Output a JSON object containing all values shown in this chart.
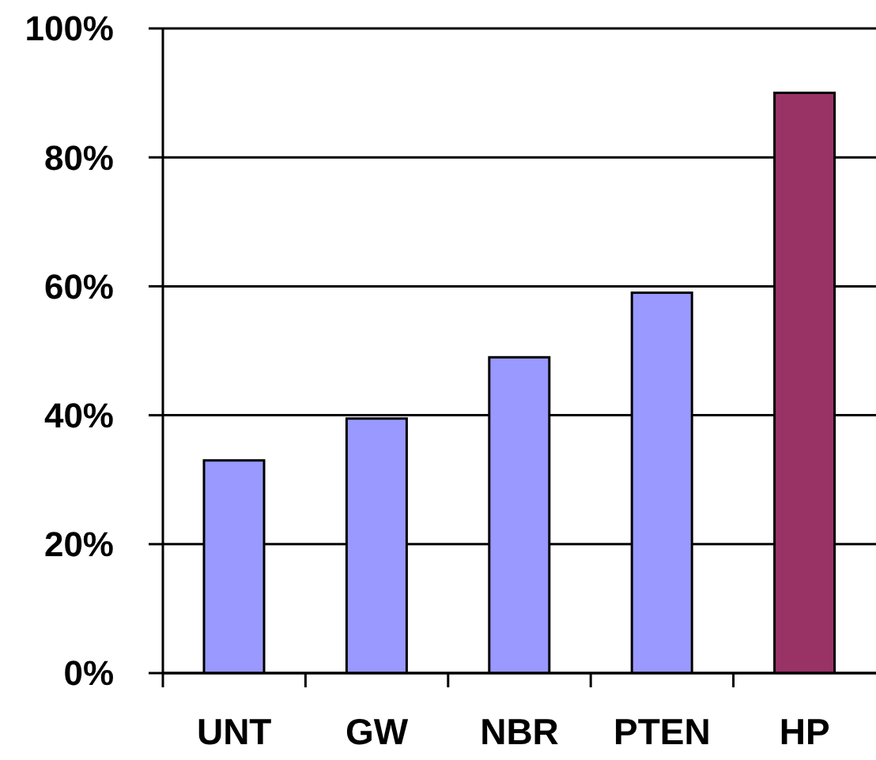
{
  "chart_data": {
    "type": "bar",
    "categories": [
      "UNT",
      "GW",
      "NBR",
      "PTEN",
      "HP"
    ],
    "values": [
      33,
      39.5,
      49,
      59,
      90
    ],
    "colors": [
      "#9999ff",
      "#9999ff",
      "#9999ff",
      "#9999ff",
      "#993366"
    ],
    "ylim": [
      0,
      100
    ],
    "yticks": [
      {
        "value": 0,
        "label": "0%"
      },
      {
        "value": 20,
        "label": "20%"
      },
      {
        "value": 40,
        "label": "40%"
      },
      {
        "value": 60,
        "label": "60%"
      },
      {
        "value": 80,
        "label": "80%"
      },
      {
        "value": 100,
        "label": "100%"
      }
    ],
    "grid": "y"
  }
}
